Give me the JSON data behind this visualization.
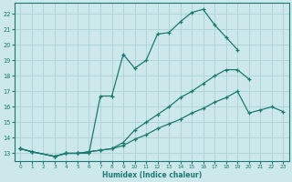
{
  "xlabel": "Humidex (Indice chaleur)",
  "bg_color": "#cce8eb",
  "grid_color": "#b0d4d8",
  "line_color": "#1a7a6e",
  "xlim": [
    -0.5,
    23.5
  ],
  "ylim": [
    12.5,
    22.7
  ],
  "xticks": [
    0,
    1,
    2,
    3,
    4,
    5,
    6,
    7,
    8,
    9,
    10,
    11,
    12,
    13,
    14,
    15,
    16,
    17,
    18,
    19,
    20,
    21,
    22,
    23
  ],
  "yticks": [
    13,
    14,
    15,
    16,
    17,
    18,
    19,
    20,
    21,
    22
  ],
  "curve1_x": [
    0,
    1,
    3,
    4,
    5,
    6,
    7,
    8,
    9,
    10,
    11,
    12,
    13,
    14,
    15,
    16,
    17,
    18,
    19
  ],
  "curve1_y": [
    13.3,
    13.1,
    12.8,
    13.0,
    13.0,
    13.0,
    16.7,
    16.7,
    19.4,
    18.5,
    19.0,
    20.7,
    20.8,
    21.5,
    22.1,
    22.3,
    21.3,
    20.5,
    19.7
  ],
  "curve2_x": [
    0,
    1,
    3,
    4,
    5,
    6,
    7,
    8,
    9,
    10,
    11,
    12,
    13,
    14,
    15,
    16,
    17,
    18,
    19,
    20
  ],
  "curve2_y": [
    13.3,
    13.1,
    12.8,
    13.0,
    13.0,
    13.1,
    13.2,
    13.3,
    13.7,
    14.5,
    15.0,
    15.5,
    16.0,
    16.6,
    17.0,
    17.5,
    18.0,
    18.4,
    18.4,
    17.8
  ],
  "curve3_x": [
    0,
    1,
    3,
    4,
    5,
    6,
    7,
    8,
    9,
    10,
    11,
    12,
    13,
    14,
    15,
    16,
    17,
    18,
    19,
    20,
    21,
    22,
    23
  ],
  "curve3_y": [
    13.3,
    13.1,
    12.8,
    13.0,
    13.0,
    13.1,
    13.2,
    13.3,
    13.5,
    13.9,
    14.2,
    14.6,
    14.9,
    15.2,
    15.6,
    15.9,
    16.3,
    16.6,
    17.0,
    15.6,
    15.8,
    16.0,
    15.7
  ]
}
